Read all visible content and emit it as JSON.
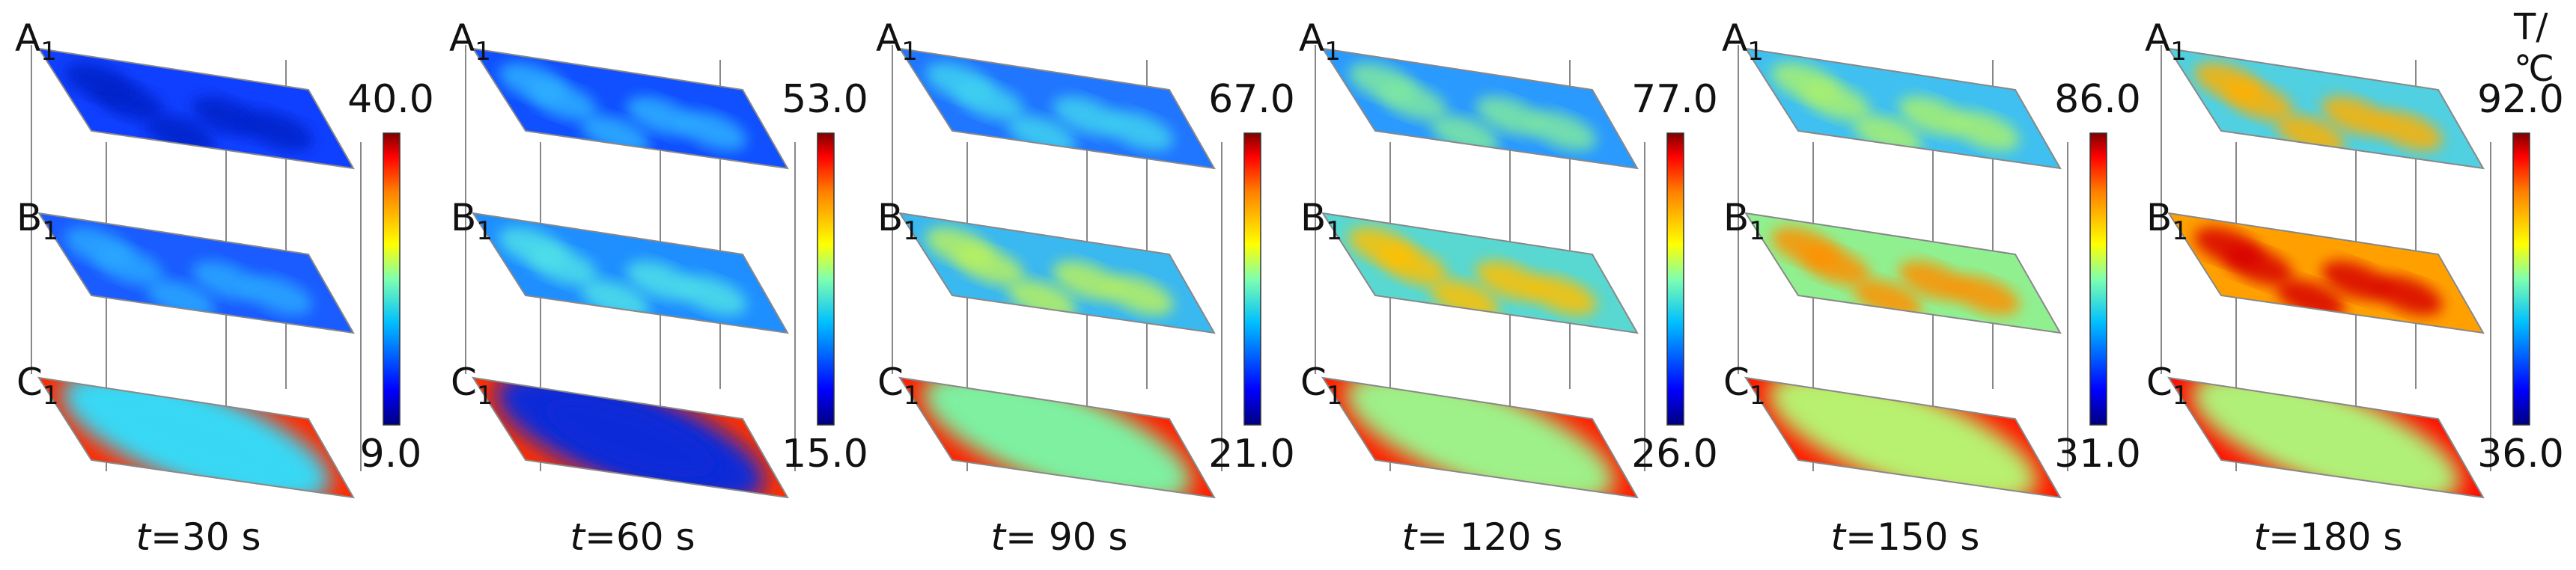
{
  "figure": {
    "unit_label": "T/℃",
    "layer_labels": [
      "A",
      "B",
      "C"
    ],
    "layer_subscript": "1",
    "panels": [
      {
        "t_label": "t",
        "t_value": "=30 s",
        "max": "40.0",
        "min": "9.0"
      },
      {
        "t_label": "t",
        "t_value": "=60 s",
        "max": "53.0",
        "min": "15.0"
      },
      {
        "t_label": "t",
        "t_value": "= 90 s",
        "max": "67.0",
        "min": "21.0"
      },
      {
        "t_label": "t",
        "t_value": "= 120 s",
        "max": "77.0",
        "min": "26.0"
      },
      {
        "t_label": "t",
        "t_value": "=150 s",
        "max": "86.0",
        "min": "31.0"
      },
      {
        "t_label": "t",
        "t_value": "=180 s",
        "max": "92.0",
        "min": "36.0"
      }
    ],
    "colormap": [
      "#00007f",
      "#0000ff",
      "#007fff",
      "#00ffff",
      "#7fff7f",
      "#ffff00",
      "#ff7f00",
      "#ff0000",
      "#7f0000"
    ]
  }
}
